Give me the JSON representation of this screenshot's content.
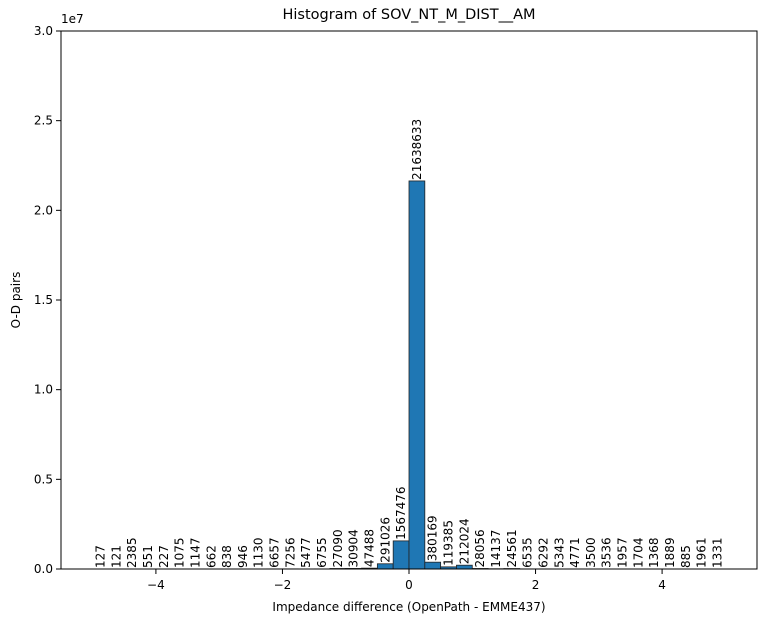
{
  "chart_data": {
    "type": "bar",
    "title": "Histogram of SOV_NT_M_DIST__AM",
    "xlabel": "Impedance difference (OpenPath - EMME437)",
    "ylabel": "O-D pairs",
    "y_offset_label": "1e7",
    "xlim": [
      -5.5,
      5.5
    ],
    "ylim": [
      0,
      30000000
    ],
    "x_ticks": [
      -4,
      -2,
      0,
      2,
      4
    ],
    "x_tick_labels": [
      "−4",
      "−2",
      "0",
      "2",
      "4"
    ],
    "y_ticks": [
      0,
      5000000,
      10000000,
      15000000,
      20000000,
      25000000,
      30000000
    ],
    "y_tick_labels": [
      "0.0",
      "0.5",
      "1.0",
      "1.5",
      "2.0",
      "2.5",
      "3.0"
    ],
    "bin_width": 0.25,
    "bins": [
      {
        "x": -5.0,
        "value": 127
      },
      {
        "x": -4.75,
        "value": 121
      },
      {
        "x": -4.5,
        "value": 2385
      },
      {
        "x": -4.25,
        "value": 551
      },
      {
        "x": -4.0,
        "value": 227
      },
      {
        "x": -3.75,
        "value": 1075
      },
      {
        "x": -3.5,
        "value": 1147
      },
      {
        "x": -3.25,
        "value": 662
      },
      {
        "x": -3.0,
        "value": 838
      },
      {
        "x": -2.75,
        "value": 946
      },
      {
        "x": -2.5,
        "value": 1130
      },
      {
        "x": -2.25,
        "value": 6657
      },
      {
        "x": -2.0,
        "value": 7256
      },
      {
        "x": -1.75,
        "value": 5477
      },
      {
        "x": -1.5,
        "value": 6755
      },
      {
        "x": -1.25,
        "value": 27090
      },
      {
        "x": -1.0,
        "value": 30904
      },
      {
        "x": -0.75,
        "value": 47488
      },
      {
        "x": -0.5,
        "value": 291026
      },
      {
        "x": -0.25,
        "value": 1567476
      },
      {
        "x": 0.0,
        "value": 21638633
      },
      {
        "x": 0.25,
        "value": 380169
      },
      {
        "x": 0.5,
        "value": 119385
      },
      {
        "x": 0.75,
        "value": 212024
      },
      {
        "x": 1.0,
        "value": 28056
      },
      {
        "x": 1.25,
        "value": 14137
      },
      {
        "x": 1.5,
        "value": 24561
      },
      {
        "x": 1.75,
        "value": 6535
      },
      {
        "x": 2.0,
        "value": 6292
      },
      {
        "x": 2.25,
        "value": 5343
      },
      {
        "x": 2.5,
        "value": 4771
      },
      {
        "x": 2.75,
        "value": 3500
      },
      {
        "x": 3.0,
        "value": 3536
      },
      {
        "x": 3.25,
        "value": 1957
      },
      {
        "x": 3.5,
        "value": 1704
      },
      {
        "x": 3.75,
        "value": 1368
      },
      {
        "x": 4.0,
        "value": 1889
      },
      {
        "x": 4.25,
        "value": 885
      },
      {
        "x": 4.5,
        "value": 1961
      },
      {
        "x": 4.75,
        "value": 1331
      }
    ],
    "bar_color": "#1f77b4",
    "bar_edge_color": "#222222",
    "grid": false,
    "legend": "none"
  }
}
